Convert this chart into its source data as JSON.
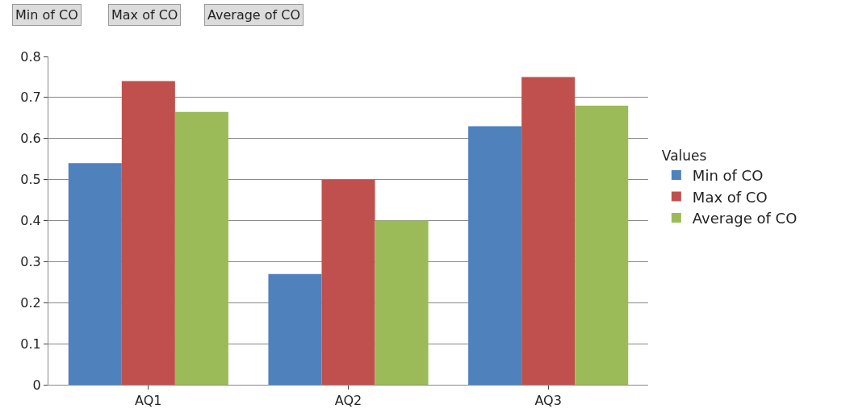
{
  "chart_data": {
    "type": "bar",
    "categories": [
      "AQ1",
      "AQ2",
      "AQ3"
    ],
    "series": [
      {
        "name": "Min of CO",
        "color": "#4f81bd",
        "values": [
          0.54,
          0.27,
          0.63
        ]
      },
      {
        "name": "Max of CO",
        "color": "#c0504d",
        "values": [
          0.74,
          0.5,
          0.75
        ]
      },
      {
        "name": "Average of CO",
        "color": "#9bbb59",
        "values": [
          0.665,
          0.4,
          0.68
        ]
      }
    ],
    "ylim": [
      0,
      0.8
    ],
    "yticks": [
      0,
      0.1,
      0.2,
      0.3,
      0.4,
      0.5,
      0.6,
      0.7,
      0.8
    ],
    "grid": "y",
    "legend": "right",
    "legend_title": "Values",
    "annotations": [
      "Min of CO",
      "Max of CO",
      "Average of CO"
    ]
  }
}
